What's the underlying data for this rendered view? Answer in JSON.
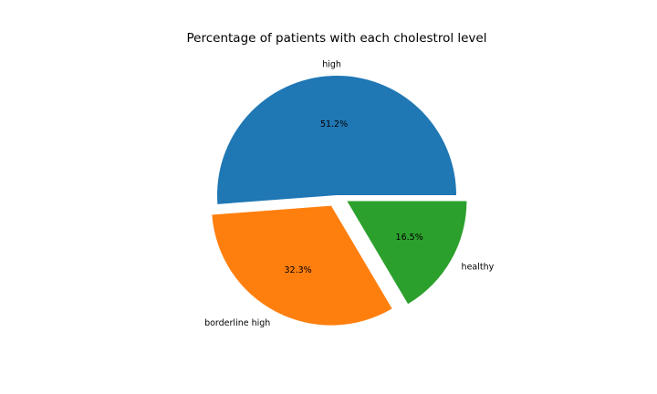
{
  "chart_data": {
    "type": "pie",
    "title": "Percentage of patients with each cholestrol level",
    "slices": [
      {
        "label": "high",
        "value": 51.2,
        "pct_label": "51.2%",
        "color": "#1f77b4",
        "explode": 0
      },
      {
        "label": "borderline high",
        "value": 32.3,
        "pct_label": "32.3%",
        "color": "#ff7f0e",
        "explode": 0.1
      },
      {
        "label": "healthy",
        "value": 16.5,
        "pct_label": "16.5%",
        "color": "#2ca02c",
        "explode": 0.1
      }
    ],
    "start_angle_deg": 0,
    "counterclock": true
  }
}
